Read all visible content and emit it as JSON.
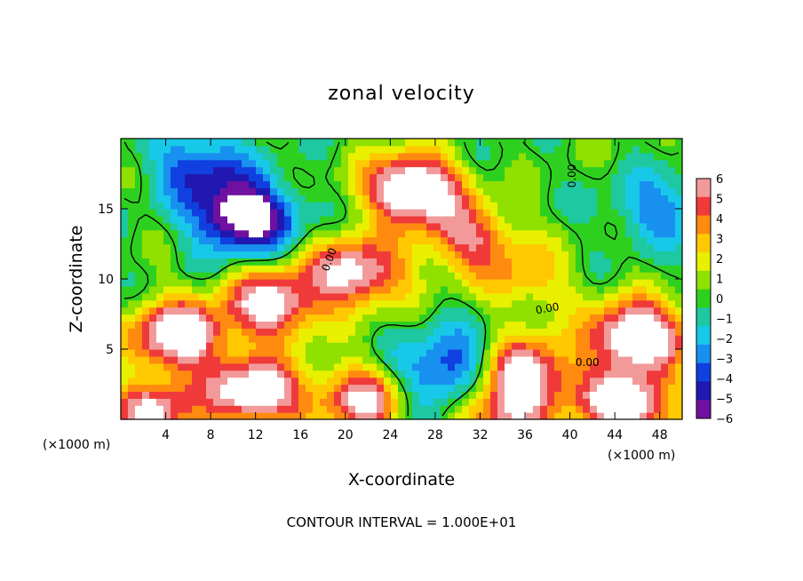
{
  "chart_data": {
    "type": "heatmap",
    "title": "zonal velocity",
    "xlabel": "X-coordinate",
    "ylabel": "Z-coordinate",
    "x_unit": "(×1000 m)",
    "x_unit_right": "(×1000 m)",
    "xlim": [
      0,
      50
    ],
    "ylim": [
      0,
      20
    ],
    "x_ticks": [
      "4",
      "8",
      "12",
      "16",
      "20",
      "24",
      "28",
      "32",
      "36",
      "40",
      "44",
      "48"
    ],
    "y_ticks": [
      "5",
      "10",
      "15"
    ],
    "colorbar": {
      "min": -6,
      "max": 6,
      "labels": [
        "6",
        "5",
        "4",
        "3",
        "2",
        "1",
        "0",
        "−1",
        "−2",
        "−3",
        "−4",
        "−5",
        "−6"
      ],
      "colors": [
        "#f29a9a",
        "#f03a3a",
        "#ff8a10",
        "#ffc800",
        "#e8f000",
        "#90e000",
        "#2ed020",
        "#1ec8a0",
        "#18c8e8",
        "#1890f0",
        "#1040e0",
        "#2018b0",
        "#7010a0"
      ]
    },
    "contour_labels": [
      "0.00",
      "0.00",
      "0.00",
      "0.00"
    ],
    "features": [
      {
        "sign": "positive",
        "x": 26,
        "z": 16.5,
        "strength": 9
      },
      {
        "sign": "positive",
        "x": 31,
        "z": 13,
        "strength": 5
      },
      {
        "sign": "positive",
        "x": 21,
        "z": 10.5,
        "strength": 7
      },
      {
        "sign": "positive",
        "x": 36,
        "z": 10,
        "strength": 3
      },
      {
        "sign": "positive",
        "x": 13.5,
        "z": 8.2,
        "strength": 7
      },
      {
        "sign": "positive",
        "x": 5,
        "z": 6,
        "strength": 8
      },
      {
        "sign": "positive",
        "x": 46,
        "z": 6,
        "strength": 9
      },
      {
        "sign": "positive",
        "x": 12,
        "z": 2,
        "strength": 8
      },
      {
        "sign": "positive",
        "x": 36,
        "z": 3.5,
        "strength": 7
      },
      {
        "sign": "positive",
        "x": 22,
        "z": 1.5,
        "strength": 7
      },
      {
        "sign": "positive",
        "x": 45,
        "z": 1,
        "strength": 8
      },
      {
        "sign": "positive",
        "x": 3,
        "z": 0.5,
        "strength": 6
      },
      {
        "sign": "positive",
        "x": 34,
        "z": 0.5,
        "strength": 5
      },
      {
        "sign": "negative",
        "x": 11,
        "z": 14.5,
        "strength": 8
      },
      {
        "sign": "negative",
        "x": 7,
        "z": 18,
        "strength": 4
      },
      {
        "sign": "negative",
        "x": 48,
        "z": 15,
        "strength": 3
      },
      {
        "sign": "negative",
        "x": 30,
        "z": 4,
        "strength": 4
      },
      {
        "sign": "negative",
        "x": 26,
        "z": 2,
        "strength": 3
      }
    ],
    "contour_interval_text": "CONTOUR INTERVAL = 1.000E+01"
  }
}
